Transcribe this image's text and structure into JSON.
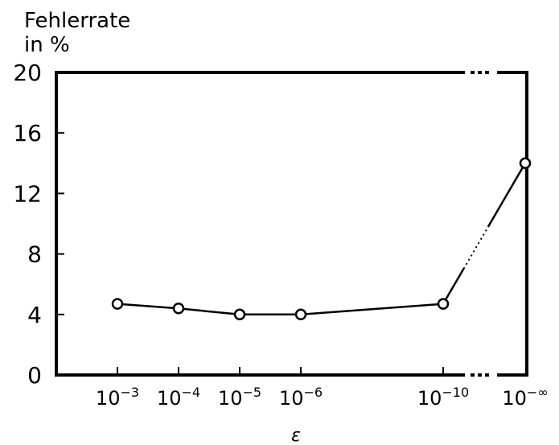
{
  "chart_data": {
    "type": "line",
    "title": "",
    "ylabel_line1": "Fehlerrate",
    "ylabel_line2": "in %",
    "xlabel": "ε",
    "ylim": [
      0,
      20
    ],
    "yticks": [
      "0",
      "4",
      "8",
      "12",
      "16",
      "20"
    ],
    "categories": [
      {
        "base": "10",
        "exp": "−3"
      },
      {
        "base": "10",
        "exp": "−4"
      },
      {
        "base": "10",
        "exp": "−5"
      },
      {
        "base": "10",
        "exp": "−6"
      },
      {
        "base": "10",
        "exp": "−10"
      },
      {
        "base": "10",
        "exp": "−∞"
      }
    ],
    "series": [
      {
        "values": [
          4.7,
          4.4,
          4.0,
          4.0,
          4.7,
          14.0
        ]
      }
    ],
    "axis_break_between": [
      4,
      5
    ],
    "grid": false,
    "marker": "circle"
  }
}
